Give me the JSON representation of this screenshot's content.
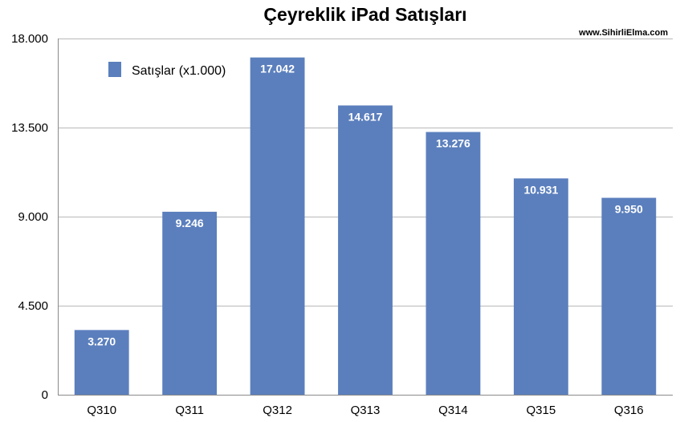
{
  "chart_data": {
    "type": "bar",
    "title": "Çeyreklik iPad Satışları",
    "watermark": "www.SihirliElma.com",
    "categories": [
      "Q310",
      "Q311",
      "Q312",
      "Q313",
      "Q314",
      "Q315",
      "Q316"
    ],
    "series": [
      {
        "name": "Satışlar (x1.000)",
        "values": [
          3270,
          9246,
          17042,
          14617,
          13276,
          10931,
          9950
        ],
        "labels": [
          "3.270",
          "9.246",
          "17.042",
          "14.617",
          "13.276",
          "10.931",
          "9.950"
        ],
        "color": "#5b7fbd"
      }
    ],
    "ylim": [
      0,
      18000
    ],
    "yticks": [
      0,
      4500,
      9000,
      13500,
      18000
    ],
    "ytick_labels": [
      "0",
      "4.500",
      "9.000",
      "13.500",
      "18.000"
    ],
    "xlabel": "",
    "ylabel": "",
    "grid": true,
    "legend_position": "top-left"
  }
}
